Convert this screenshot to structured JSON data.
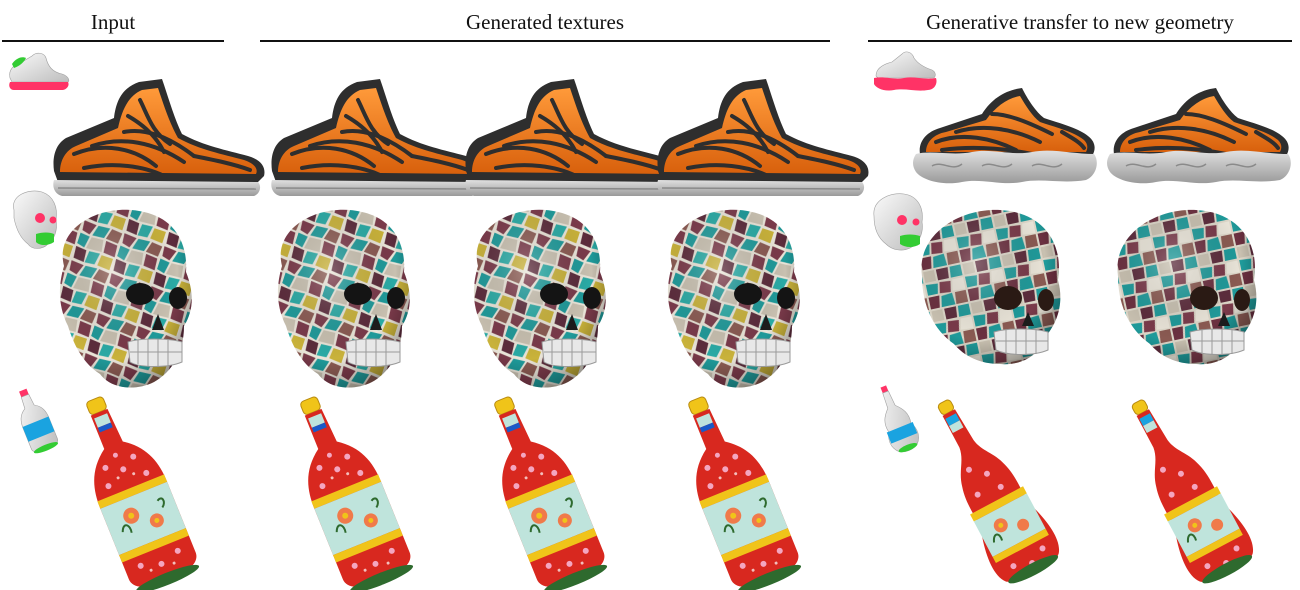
{
  "figure": {
    "headers": {
      "input": "Input",
      "generated": "Generated textures",
      "transfer": "Generative transfer to new geometry"
    }
  },
  "colors": {
    "shoe_orange": "#f07a1a",
    "shoe_dark": "#2e2e2e",
    "sole_gray": "#c8c8c8",
    "guide_pink": "#ff3366",
    "guide_green": "#33cc33",
    "guide_cyan": "#1aa3e0",
    "mosaic_maroon": "#7a3a4a",
    "mosaic_teal": "#1f9a9a",
    "mosaic_cream": "#e9e4d8",
    "bottle_red": "#d8281f",
    "bottle_yellow": "#f0c419",
    "bottle_mint": "#bfe4dc"
  }
}
